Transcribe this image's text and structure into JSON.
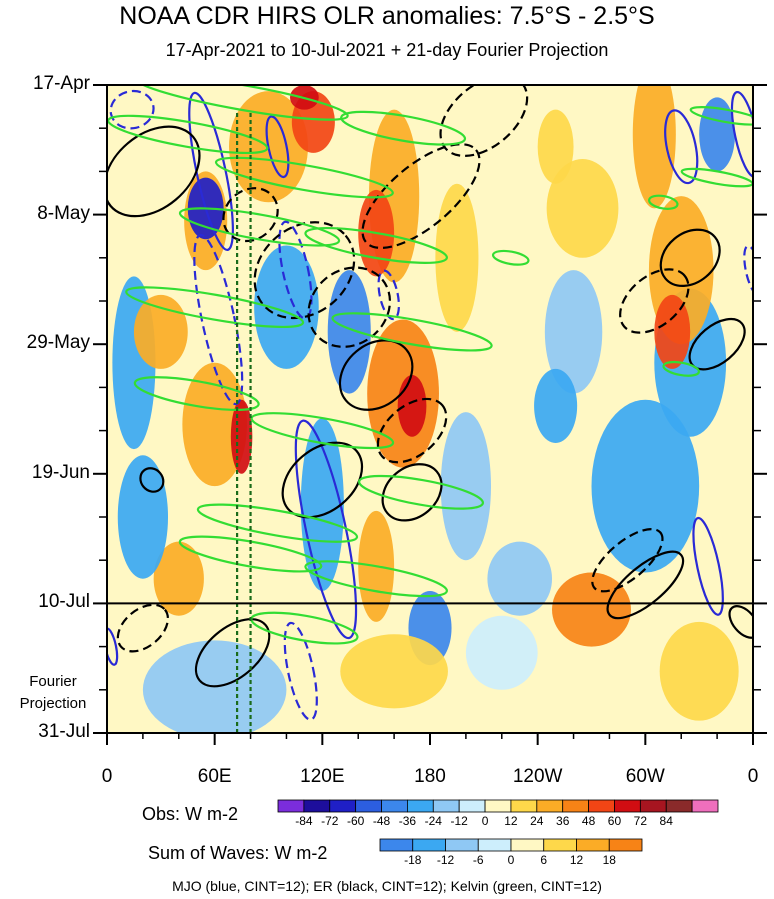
{
  "title": "NOAA CDR HIRS OLR anomalies: 7.5°S - 2.5°S",
  "subtitle": "17-Apr-2021 to 10-Jul-2021 + 21-day Fourier Projection",
  "fourier_label_line1": "Fourier",
  "fourier_label_line2": "Projection",
  "obs_label": "Obs: W m-2",
  "waves_label": "Sum of Waves: W m-2",
  "caption": "MJO (blue, CINT=12); ER (black, CINT=12); Kelvin (green, CINT=12)",
  "colors": {
    "mjo": "#2a2ad6",
    "er": "#000000",
    "kelvin": "#33dd33",
    "reference_lines": "#1a6b1a"
  },
  "chart_data": {
    "type": "heatmap",
    "x_axis": {
      "ticks": [
        "0",
        "60E",
        "120E",
        "180",
        "120W",
        "60W",
        "0"
      ],
      "tick_longitudes": [
        0,
        60,
        120,
        180,
        240,
        300,
        360
      ],
      "range": [
        0,
        360
      ]
    },
    "y_axis": {
      "ticks": [
        "17-Apr",
        "8-May",
        "29-May",
        "19-Jun",
        "10-Jul",
        "31-Jul"
      ],
      "tick_day_offsets": [
        0,
        21,
        42,
        63,
        84,
        105
      ],
      "range_days": [
        0,
        105
      ],
      "inverted": true
    },
    "observation_end": "10-Jul",
    "projection_start": "10-Jul",
    "projection_end": "31-Jul",
    "reference_longitudes": [
      72.5,
      80
    ],
    "obs_colorbar": {
      "ticks": [
        -84,
        -72,
        -60,
        -48,
        -36,
        -24,
        -12,
        0,
        12,
        24,
        36,
        48,
        60,
        72,
        84
      ],
      "colors": [
        "#7b2ddc",
        "#1d0e9c",
        "#1f1fc6",
        "#2c5ee0",
        "#3c87ec",
        "#3ba8f2",
        "#8fc8f4",
        "#cdeefc",
        "#fff8c4",
        "#fed84a",
        "#fbac26",
        "#f78316",
        "#f24515",
        "#d10d12",
        "#a71520",
        "#8a2a2a",
        "#ef6fbd"
      ]
    },
    "waves_colorbar": {
      "ticks": [
        -18,
        -12,
        -6,
        0,
        6,
        12,
        18
      ],
      "colors": [
        "#3c87ec",
        "#3ba8f2",
        "#8fc8f4",
        "#cdeefc",
        "#fff8c4",
        "#fed84a",
        "#fbac26",
        "#f78316"
      ]
    },
    "mjo_contours": [
      {
        "lon": 58,
        "day": 14,
        "dx": 8,
        "dy": 13,
        "sign": 1
      },
      {
        "lon": 14,
        "day": 4,
        "dx": 12,
        "dy": 3,
        "sign": -1
      },
      {
        "lon": 62,
        "day": 38,
        "dx": 9,
        "dy": 14,
        "sign": -1
      },
      {
        "lon": 122,
        "day": 72,
        "dx": 11,
        "dy": 18,
        "sign": 1
      },
      {
        "lon": 105,
        "day": 30,
        "dx": 7,
        "dy": 8,
        "sign": -1
      },
      {
        "lon": 108,
        "day": 95,
        "dx": 7,
        "dy": 8,
        "sign": -1
      },
      {
        "lon": 320,
        "day": 10,
        "dx": 8,
        "dy": 6,
        "sign": 1
      },
      {
        "lon": 356,
        "day": 8,
        "dx": 6,
        "dy": 7,
        "sign": 1
      },
      {
        "lon": 360,
        "day": 30,
        "dx": 4,
        "dy": 4,
        "sign": -1
      },
      {
        "lon": 335,
        "day": 78,
        "dx": 6,
        "dy": 8,
        "sign": 1
      },
      {
        "lon": 2,
        "day": 91,
        "dx": 3,
        "dy": 3,
        "sign": 1
      },
      {
        "lon": 157,
        "day": 34,
        "dx": 5,
        "dy": 4,
        "sign": -1
      },
      {
        "lon": 95,
        "day": 10,
        "dx": 5,
        "dy": 5,
        "sign": 1
      }
    ],
    "er_contours": [
      {
        "lon": 110,
        "day": 30,
        "dx": 30,
        "dy": 7,
        "sign": -1
      },
      {
        "lon": 175,
        "day": 18,
        "dx": 40,
        "dy": 5,
        "sign": -1
      },
      {
        "lon": 150,
        "day": 47,
        "dx": 22,
        "dy": 5,
        "sign": 1
      },
      {
        "lon": 210,
        "day": 5,
        "dx": 28,
        "dy": 5,
        "sign": -1
      },
      {
        "lon": 135,
        "day": 36,
        "dx": 24,
        "dy": 6,
        "sign": -1
      },
      {
        "lon": 170,
        "day": 56,
        "dx": 22,
        "dy": 4,
        "sign": -1
      },
      {
        "lon": 120,
        "day": 64,
        "dx": 25,
        "dy": 5,
        "sign": 1
      },
      {
        "lon": 170,
        "day": 66,
        "dx": 18,
        "dy": 4,
        "sign": 1
      },
      {
        "lon": 70,
        "day": 92,
        "dx": 24,
        "dy": 4,
        "sign": 1
      },
      {
        "lon": 20,
        "day": 88,
        "dx": 16,
        "dy": 3,
        "sign": -1
      },
      {
        "lon": 25,
        "day": 14,
        "dx": 30,
        "dy": 6,
        "sign": 1
      },
      {
        "lon": 305,
        "day": 35,
        "dx": 22,
        "dy": 4,
        "sign": -1
      },
      {
        "lon": 325,
        "day": 28,
        "dx": 18,
        "dy": 4,
        "sign": 1
      },
      {
        "lon": 340,
        "day": 42,
        "dx": 18,
        "dy": 3,
        "sign": 1
      },
      {
        "lon": 290,
        "day": 77,
        "dx": 24,
        "dy": 3,
        "sign": -1
      },
      {
        "lon": 300,
        "day": 81,
        "dx": 26,
        "dy": 3,
        "sign": 1
      },
      {
        "lon": 80,
        "day": 21,
        "dx": 16,
        "dy": 4,
        "sign": -1
      },
      {
        "lon": 25,
        "day": 64,
        "dx": 6,
        "dy": 2,
        "sign": 1
      },
      {
        "lon": 355,
        "day": 87,
        "dx": 6,
        "dy": 3,
        "sign": 1
      }
    ],
    "kelvin_contours": [
      {
        "lon": 75,
        "day": 2,
        "dx": 60,
        "dy": 2,
        "sign": 1
      },
      {
        "lon": 45,
        "day": 8,
        "dx": 45,
        "dy": 2,
        "sign": 1
      },
      {
        "lon": 165,
        "day": 7,
        "dx": 35,
        "dy": 2,
        "sign": 1
      },
      {
        "lon": 110,
        "day": 15,
        "dx": 50,
        "dy": 2,
        "sign": 1
      },
      {
        "lon": 85,
        "day": 23,
        "dx": 45,
        "dy": 2,
        "sign": 1
      },
      {
        "lon": 150,
        "day": 26,
        "dx": 40,
        "dy": 2,
        "sign": 1
      },
      {
        "lon": 60,
        "day": 36,
        "dx": 50,
        "dy": 2,
        "sign": 1
      },
      {
        "lon": 170,
        "day": 40,
        "dx": 45,
        "dy": 2,
        "sign": 1
      },
      {
        "lon": 50,
        "day": 50,
        "dx": 35,
        "dy": 2,
        "sign": 1
      },
      {
        "lon": 120,
        "day": 56,
        "dx": 40,
        "dy": 2,
        "sign": 1
      },
      {
        "lon": 175,
        "day": 66,
        "dx": 35,
        "dy": 2,
        "sign": 1
      },
      {
        "lon": 95,
        "day": 71,
        "dx": 45,
        "dy": 2,
        "sign": 1
      },
      {
        "lon": 80,
        "day": 76,
        "dx": 40,
        "dy": 2,
        "sign": 1
      },
      {
        "lon": 150,
        "day": 80,
        "dx": 40,
        "dy": 2,
        "sign": 1
      },
      {
        "lon": 110,
        "day": 88,
        "dx": 30,
        "dy": 2,
        "sign": 1
      },
      {
        "lon": 345,
        "day": 5,
        "dx": 20,
        "dy": 1,
        "sign": 1
      },
      {
        "lon": 340,
        "day": 15,
        "dx": 20,
        "dy": 1,
        "sign": 1
      },
      {
        "lon": 320,
        "day": 46,
        "dx": 10,
        "dy": 1,
        "sign": 1
      },
      {
        "lon": 310,
        "day": 19,
        "dx": 8,
        "dy": 1,
        "sign": 1
      },
      {
        "lon": 225,
        "day": 28,
        "dx": 10,
        "dy": 1,
        "sign": 1
      }
    ],
    "anomaly_patches": [
      {
        "lon": 90,
        "day": 10,
        "rx": 22,
        "ry": 9,
        "v": 30
      },
      {
        "lon": 115,
        "day": 6,
        "rx": 12,
        "ry": 5,
        "v": 55
      },
      {
        "lon": 55,
        "day": 22,
        "rx": 12,
        "ry": 8,
        "v": 30
      },
      {
        "lon": 55,
        "day": 20,
        "rx": 10,
        "ry": 5,
        "v": -70
      },
      {
        "lon": 160,
        "day": 18,
        "rx": 14,
        "ry": 14,
        "v": 30
      },
      {
        "lon": 150,
        "day": 24,
        "rx": 10,
        "ry": 7,
        "v": 50
      },
      {
        "lon": 165,
        "day": 50,
        "rx": 20,
        "ry": 12,
        "v": 40
      },
      {
        "lon": 170,
        "day": 52,
        "rx": 8,
        "ry": 5,
        "v": 65
      },
      {
        "lon": 135,
        "day": 40,
        "rx": 12,
        "ry": 10,
        "v": -40
      },
      {
        "lon": 100,
        "day": 36,
        "rx": 18,
        "ry": 10,
        "v": -30
      },
      {
        "lon": 60,
        "day": 55,
        "rx": 18,
        "ry": 10,
        "v": 30
      },
      {
        "lon": 120,
        "day": 68,
        "rx": 12,
        "ry": 14,
        "v": -35
      },
      {
        "lon": 150,
        "day": 78,
        "rx": 10,
        "ry": 9,
        "v": 35
      },
      {
        "lon": 40,
        "day": 80,
        "rx": 14,
        "ry": 6,
        "v": 25
      },
      {
        "lon": 15,
        "day": 45,
        "rx": 12,
        "ry": 14,
        "v": -25
      },
      {
        "lon": 20,
        "day": 70,
        "rx": 14,
        "ry": 10,
        "v": -28
      },
      {
        "lon": 30,
        "day": 40,
        "rx": 15,
        "ry": 6,
        "v": 25
      },
      {
        "lon": 195,
        "day": 28,
        "rx": 12,
        "ry": 12,
        "v": 15
      },
      {
        "lon": 200,
        "day": 65,
        "rx": 14,
        "ry": 12,
        "v": -15
      },
      {
        "lon": 180,
        "day": 88,
        "rx": 12,
        "ry": 6,
        "v": -20
      },
      {
        "lon": 260,
        "day": 40,
        "rx": 16,
        "ry": 10,
        "v": -22
      },
      {
        "lon": 250,
        "day": 52,
        "rx": 12,
        "ry": 6,
        "v": -25
      },
      {
        "lon": 300,
        "day": 65,
        "rx": 30,
        "ry": 14,
        "v": -25
      },
      {
        "lon": 325,
        "day": 45,
        "rx": 20,
        "ry": 12,
        "v": -25
      },
      {
        "lon": 320,
        "day": 30,
        "rx": 18,
        "ry": 12,
        "v": 35
      },
      {
        "lon": 315,
        "day": 40,
        "rx": 10,
        "ry": 6,
        "v": 55
      },
      {
        "lon": 305,
        "day": 8,
        "rx": 12,
        "ry": 12,
        "v": 35
      },
      {
        "lon": 340,
        "day": 8,
        "rx": 10,
        "ry": 6,
        "v": -40
      },
      {
        "lon": 265,
        "day": 20,
        "rx": 20,
        "ry": 8,
        "v": 22
      },
      {
        "lon": 270,
        "day": 85,
        "rx": 22,
        "ry": 6,
        "v": 25
      },
      {
        "lon": 230,
        "day": 80,
        "rx": 18,
        "ry": 6,
        "v": -20
      },
      {
        "lon": 250,
        "day": 10,
        "rx": 10,
        "ry": 6,
        "v": 15
      },
      {
        "lon": 330,
        "day": 95,
        "rx": 22,
        "ry": 8,
        "v": 6
      },
      {
        "lon": 220,
        "day": 92,
        "rx": 20,
        "ry": 6,
        "v": -6
      },
      {
        "lon": 60,
        "day": 98,
        "rx": 40,
        "ry": 8,
        "v": -7
      },
      {
        "lon": 160,
        "day": 95,
        "rx": 30,
        "ry": 6,
        "v": 8
      },
      {
        "lon": 75,
        "day": 57,
        "rx": 6,
        "ry": 6,
        "v": 60
      },
      {
        "lon": 110,
        "day": 2,
        "rx": 8,
        "ry": 2,
        "v": 65
      }
    ]
  }
}
